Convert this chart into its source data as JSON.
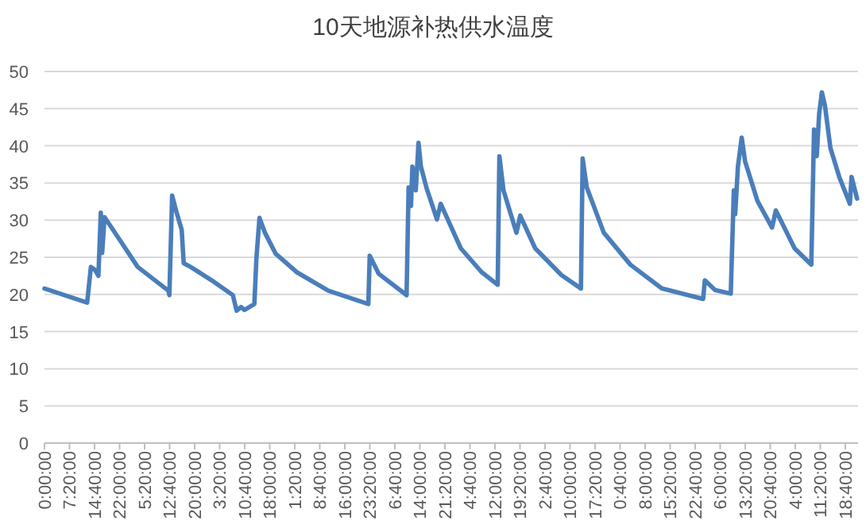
{
  "chart_data": {
    "type": "line",
    "title": "10天地源补热供水温度",
    "x": [
      "2000-01-01T00:00",
      "2000-01-01T12:30",
      "2000-01-01T13:36",
      "2000-01-01T14:48",
      "2000-01-01T15:48",
      "2000-01-01T16:30",
      "2000-01-01T16:54",
      "2000-01-01T17:36",
      "2000-01-01T22:42",
      "2000-01-02T03:18",
      "2000-01-02T12:18",
      "2000-01-02T12:36",
      "2000-01-02T13:24",
      "2000-01-02T14:36",
      "2000-01-02T16:12",
      "2000-01-02T16:48",
      "2000-01-02T18:48",
      "2000-01-03T01:00",
      "2000-01-03T07:12",
      "2000-01-03T08:18",
      "2000-01-03T09:36",
      "2000-01-03T10:36",
      "2000-01-03T13:30",
      "2000-01-03T14:06",
      "2000-01-03T15:00",
      "2000-01-03T16:36",
      "2000-01-03T19:42",
      "2000-01-04T01:54",
      "2000-01-04T11:12",
      "2000-01-04T22:54",
      "2000-01-04T23:18",
      "2000-01-05T01:54",
      "2000-01-05T10:06",
      "2000-01-05T10:42",
      "2000-01-05T11:24",
      "2000-01-05T11:48",
      "2000-01-05T12:48",
      "2000-01-05T13:36",
      "2000-01-05T14:18",
      "2000-01-05T15:54",
      "2000-01-05T19:00",
      "2000-01-05T20:06",
      "2000-01-06T02:00",
      "2000-01-06T08:06",
      "2000-01-06T12:48",
      "2000-01-06T13:18",
      "2000-01-06T14:30",
      "2000-01-06T18:18",
      "2000-01-06T19:24",
      "2000-01-06T23:48",
      "2000-01-07T07:30",
      "2000-01-07T13:12",
      "2000-01-07T13:42",
      "2000-01-07T14:54",
      "2000-01-07T19:54",
      "2000-01-08T03:42",
      "2000-01-08T12:54",
      "2000-01-09T01:00",
      "2000-01-09T01:30",
      "2000-01-09T04:30",
      "2000-01-09T09:06",
      "2000-01-09T10:00",
      "2000-01-09T10:24",
      "2000-01-09T11:12",
      "2000-01-09T12:18",
      "2000-01-09T13:18",
      "2000-01-09T16:54",
      "2000-01-09T21:12",
      "2000-01-09T22:18",
      "2000-01-10T03:48",
      "2000-01-10T08:42",
      "2000-01-10T09:30",
      "2000-01-10T10:18",
      "2000-01-10T11:00",
      "2000-01-10T11:48",
      "2000-01-10T12:42",
      "2000-01-10T14:18",
      "2000-01-10T16:54",
      "2000-01-10T20:00",
      "2000-01-10T20:30",
      "2000-01-10T22:06"
    ],
    "values": [
      20.8,
      18.9,
      23.7,
      23.3,
      22.5,
      31,
      25.6,
      30.4,
      26.9,
      23.7,
      20.5,
      19.9,
      33.3,
      31.2,
      28.7,
      24.2,
      23.7,
      21.9,
      19.9,
      17.8,
      18.3,
      17.9,
      18.7,
      24.9,
      30.3,
      28.3,
      25.5,
      23,
      20.5,
      18.7,
      25.2,
      22.8,
      19.9,
      34.4,
      31.9,
      37.2,
      34,
      40.4,
      37.2,
      34.4,
      30.1,
      32.2,
      26.2,
      23,
      21.3,
      38.6,
      34,
      28.3,
      30.6,
      26.2,
      22.6,
      20.8,
      38.3,
      34.4,
      28.3,
      24,
      20.8,
      19.4,
      21.9,
      20.6,
      20.1,
      34,
      30.8,
      37.2,
      41.1,
      37.9,
      32.6,
      29,
      31.3,
      26.2,
      24,
      42.2,
      38.6,
      44.3,
      47.2,
      45.4,
      39.7,
      35.8,
      32.2,
      35.8,
      32.9
    ],
    "color": "#4a7ebb",
    "xlim": [
      "2000-01-01T00:00",
      "2000-01-10T22:24"
    ],
    "ylim": [
      0,
      50
    ],
    "yticks": [
      0,
      5,
      10,
      15,
      20,
      25,
      30,
      35,
      40,
      45,
      50
    ],
    "xticks": [
      {
        "value": "2000-01-01T00:00",
        "label": "0:00:00"
      },
      {
        "value": "2000-01-01T07:20",
        "label": "7:20:00"
      },
      {
        "value": "2000-01-01T14:40",
        "label": "14:40:00"
      },
      {
        "value": "2000-01-01T22:00",
        "label": "22:00:00"
      },
      {
        "value": "2000-01-02T05:20",
        "label": "5:20:00"
      },
      {
        "value": "2000-01-02T12:40",
        "label": "12:40:00"
      },
      {
        "value": "2000-01-02T20:00",
        "label": "20:00:00"
      },
      {
        "value": "2000-01-03T03:20",
        "label": "3:20:00"
      },
      {
        "value": "2000-01-03T10:40",
        "label": "10:40:00"
      },
      {
        "value": "2000-01-03T18:00",
        "label": "18:00:00"
      },
      {
        "value": "2000-01-04T01:20",
        "label": "1:20:00"
      },
      {
        "value": "2000-01-04T08:40",
        "label": "8:40:00"
      },
      {
        "value": "2000-01-04T16:00",
        "label": "16:00:00"
      },
      {
        "value": "2000-01-04T23:20",
        "label": "23:20:00"
      },
      {
        "value": "2000-01-05T06:40",
        "label": "6:40:00"
      },
      {
        "value": "2000-01-05T14:00",
        "label": "14:00:00"
      },
      {
        "value": "2000-01-05T21:20",
        "label": "21:20:00"
      },
      {
        "value": "2000-01-06T04:40",
        "label": "4:40:00"
      },
      {
        "value": "2000-01-06T12:00",
        "label": "12:00:00"
      },
      {
        "value": "2000-01-06T19:20",
        "label": "19:20:00"
      },
      {
        "value": "2000-01-07T02:40",
        "label": "2:40:00"
      },
      {
        "value": "2000-01-07T10:00",
        "label": "10:00:00"
      },
      {
        "value": "2000-01-07T17:20",
        "label": "17:20:00"
      },
      {
        "value": "2000-01-08T00:40",
        "label": "0:40:00"
      },
      {
        "value": "2000-01-08T08:00",
        "label": "8:00:00"
      },
      {
        "value": "2000-01-08T15:20",
        "label": "15:20:00"
      },
      {
        "value": "2000-01-08T22:40",
        "label": "22:40:00"
      },
      {
        "value": "2000-01-09T06:00",
        "label": "6:00:00"
      },
      {
        "value": "2000-01-09T13:20",
        "label": "13:20:00"
      },
      {
        "value": "2000-01-09T20:40",
        "label": "20:40:00"
      },
      {
        "value": "2000-01-10T04:00",
        "label": "4:00:00"
      },
      {
        "value": "2000-01-10T11:20",
        "label": "11:20:00"
      },
      {
        "value": "2000-01-10T18:40",
        "label": "18:40:00"
      }
    ],
    "grid": "y"
  }
}
